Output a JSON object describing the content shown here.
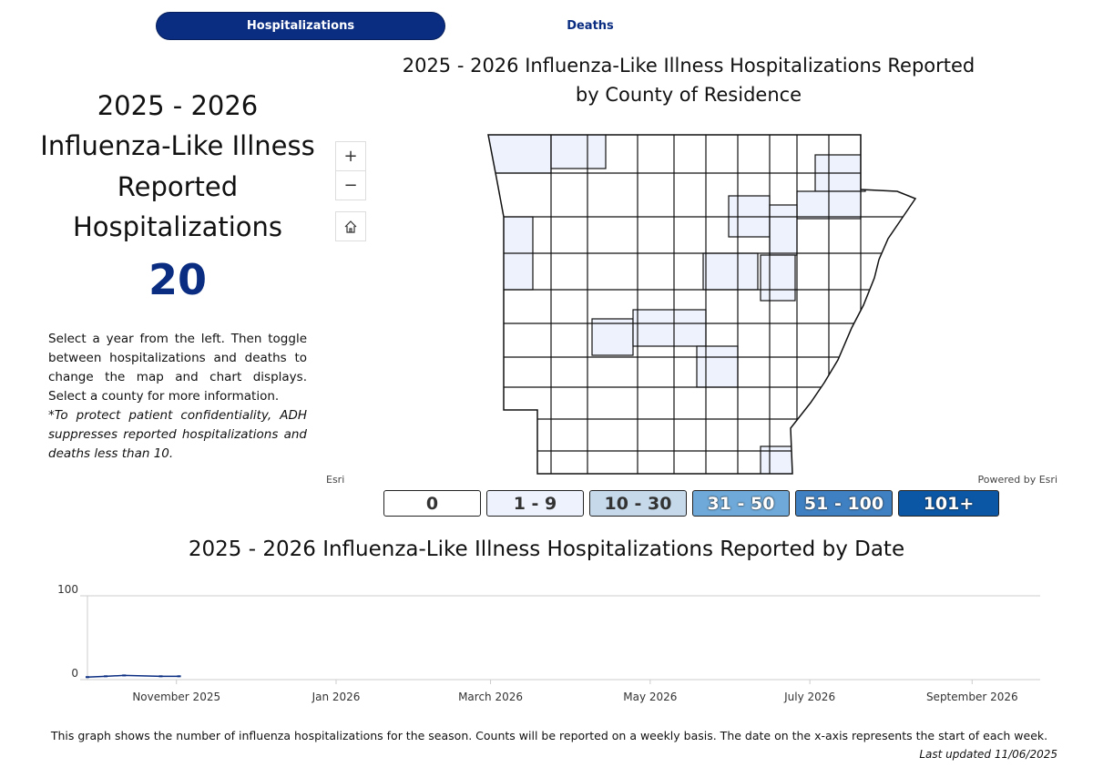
{
  "tabs": [
    "Hospitalizations",
    "Deaths"
  ],
  "summary": {
    "title_lines": [
      "2025 - 2026",
      "Influenza-Like Illness",
      "Reported",
      "Hospitalizations"
    ],
    "count": 20,
    "instructions": "Select a year from the left. Then toggle between hospitalizations and deaths to change the map and chart displays. Select a county for more information.",
    "note": "*To protect patient confidentiality, ADH suppresses reported hospitalizations and deaths less than 10."
  },
  "map": {
    "title_lines": [
      "2025 - 2026 Influenza-Like Illness Hospitalizations Reported",
      "by County of Residence"
    ],
    "attribution_left": "Esri",
    "attribution_right": "Powered by Esri",
    "legend": [
      {
        "label": "0",
        "color": "#ffffff"
      },
      {
        "label": "1 - 9",
        "color": "#eef2fc"
      },
      {
        "label": "10 - 30",
        "color": "#c6d9ea"
      },
      {
        "label": "31 - 50",
        "color": "#6ea9d9"
      },
      {
        "label": "51 - 100",
        "color": "#3f80c2"
      },
      {
        "label": "101+",
        "color": "#0b57a6"
      }
    ]
  },
  "chart_data": {
    "type": "line",
    "title": "2025 - 2026 Influenza-Like Illness Hospitalizations Reported by Date",
    "x": [
      "2025-09-28",
      "2025-10-05",
      "2025-10-12",
      "2025-10-26",
      "2025-11-02"
    ],
    "values": [
      3,
      4,
      5,
      4,
      4
    ],
    "color": "#0a2d82",
    "xlim": [
      "2025-09-28",
      "2026-09-27"
    ],
    "xticks": [
      {
        "value": "2025-11-01",
        "label": "November 2025"
      },
      {
        "value": "2026-01-01",
        "label": "Jan 2026"
      },
      {
        "value": "2026-03-01",
        "label": "March 2026"
      },
      {
        "value": "2026-05-01",
        "label": "May 2026"
      },
      {
        "value": "2026-07-01",
        "label": "July 2026"
      },
      {
        "value": "2026-09-01",
        "label": "September 2026"
      }
    ],
    "ylim": [
      0,
      100
    ],
    "yticks": [
      0,
      100
    ],
    "grid": true
  },
  "footer": {
    "note": "This graph shows the number of influenza hospitalizations for the season. Counts will be reported on a weekly basis. The date on the x-axis represents the start of each week.",
    "updated": "Last updated 11/06/2025"
  }
}
